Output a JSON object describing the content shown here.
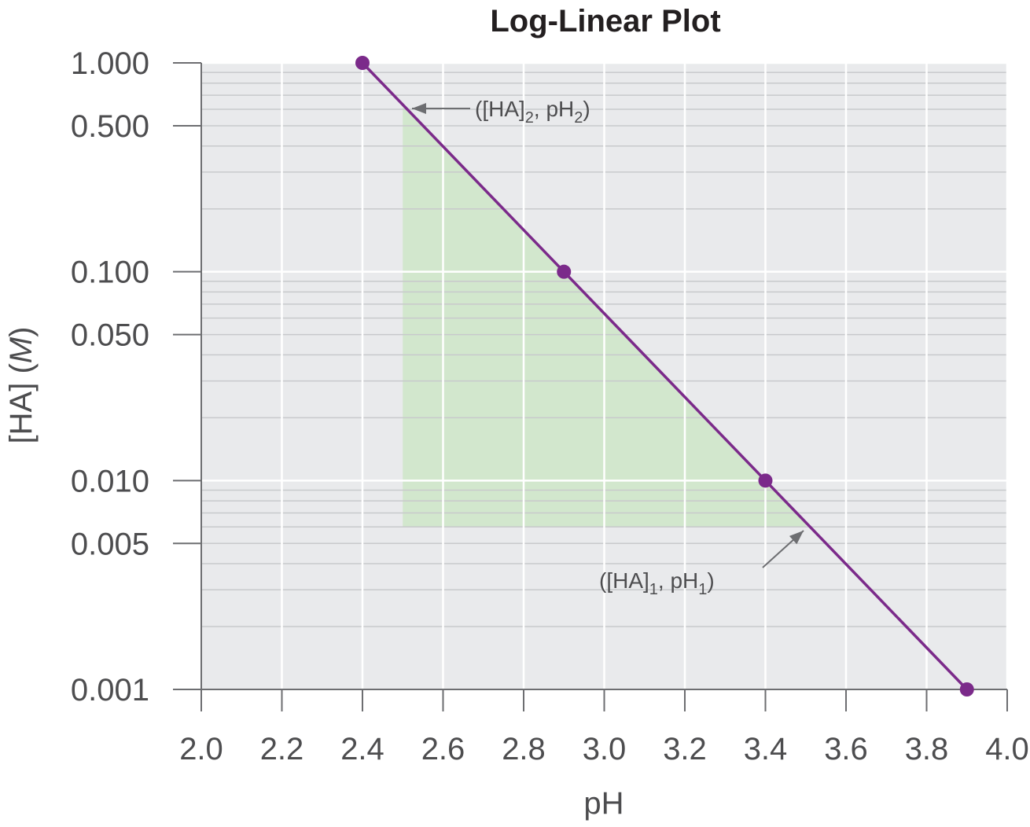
{
  "chart_data": {
    "type": "line",
    "title": "Log-Linear Plot",
    "xlabel": "pH",
    "ylabel_main": "[HA] (",
    "ylabel_italic": "M",
    "ylabel_close": ")",
    "xlim": [
      2.0,
      4.0
    ],
    "ylim": [
      0.001,
      1.0
    ],
    "yscale": "log",
    "grid": true,
    "x_ticks": [
      2.0,
      2.2,
      2.4,
      2.6,
      2.8,
      3.0,
      3.2,
      3.4,
      3.6,
      3.8,
      4.0
    ],
    "x_tick_labels": [
      "2.0",
      "2.2",
      "2.4",
      "2.6",
      "2.8",
      "3.0",
      "3.2",
      "3.4",
      "3.6",
      "3.8",
      "4.0"
    ],
    "y_ticks": [
      1.0,
      0.5,
      0.1,
      0.05,
      0.01,
      0.005,
      0.001
    ],
    "y_tick_labels": [
      "1.000",
      "0.500",
      "0.100",
      "0.050",
      "0.010",
      "0.005",
      "0.001"
    ],
    "series": [
      {
        "x": [
          2.4,
          2.9,
          3.4,
          3.9
        ],
        "y": [
          1.0,
          0.1,
          0.01,
          0.001
        ],
        "color": "#7b2a8a"
      }
    ],
    "shaded_region": {
      "x_start": 2.5,
      "x_end": 3.5,
      "y_low": 0.006,
      "color": "#c9e6c3"
    },
    "annotations": [
      {
        "id": "point2",
        "parts": [
          "([HA]",
          "2",
          ", pH",
          "2",
          ")"
        ]
      },
      {
        "id": "point1",
        "parts": [
          "([HA]",
          "1",
          ", pH",
          "1",
          ")"
        ]
      }
    ],
    "colors": {
      "plot_background": "#e9eaec",
      "grid_major": "#ffffff",
      "grid_minor": "#c8c9cc",
      "axis": "#6d6e71",
      "arrow": "#6d6e71"
    }
  }
}
